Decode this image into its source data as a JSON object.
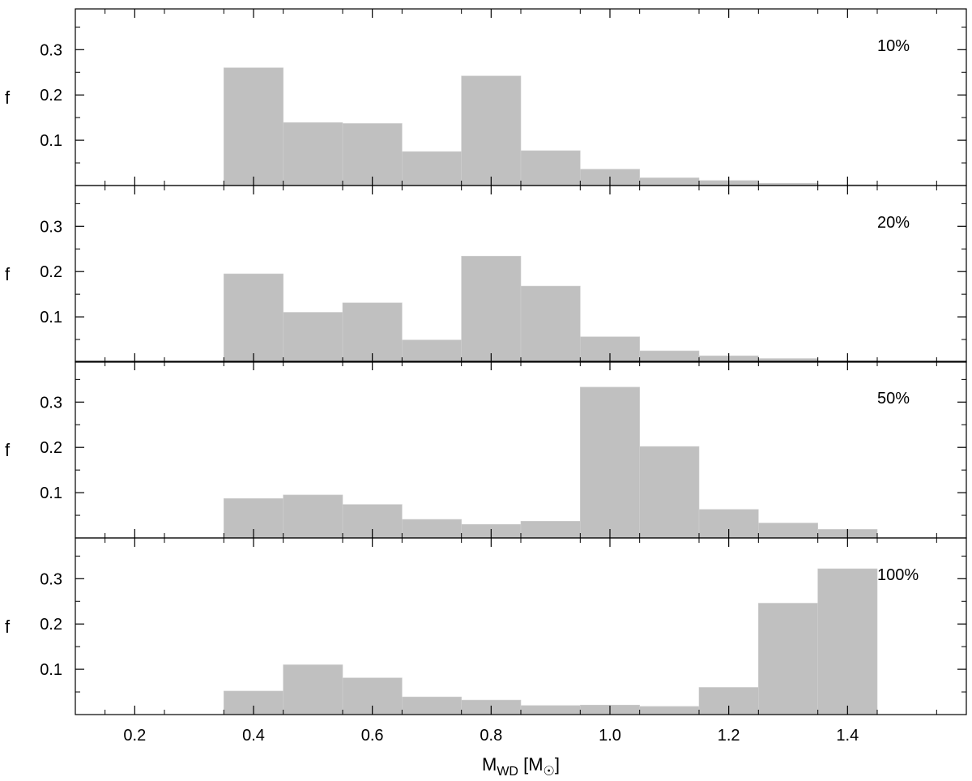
{
  "chart_data": {
    "type": "bar",
    "subtype": "histogram-stacked-panels",
    "bin_edges": [
      0.35,
      0.45,
      0.55,
      0.65,
      0.75,
      0.85,
      0.95,
      1.05,
      1.15,
      1.25,
      1.35,
      1.45
    ],
    "xlim": [
      0.1,
      1.6
    ],
    "ylim": [
      0,
      0.39
    ],
    "x_ticks": [
      0.2,
      0.4,
      0.6,
      0.8,
      1.0,
      1.2,
      1.4
    ],
    "x_tick_labels": [
      "0.2",
      "0.4",
      "0.6",
      "0.8",
      "1.0",
      "1.2",
      "1.4"
    ],
    "y_ticks": [
      0.1,
      0.2,
      0.3
    ],
    "y_tick_labels": [
      "0.1",
      "0.2",
      "0.3"
    ],
    "ylabel": "f",
    "xlabel": {
      "main": "M",
      "sub": "WD",
      "unit_open": " [M",
      "unit_sub": "☉",
      "unit_close": "]"
    },
    "bar_color": "#c0c0c0",
    "grid": false,
    "panels": [
      {
        "label": "10%",
        "values": [
          0.26,
          0.139,
          0.137,
          0.075,
          0.242,
          0.077,
          0.036,
          0.017,
          0.011,
          0.005,
          0.002
        ]
      },
      {
        "label": "20%",
        "values": [
          0.195,
          0.11,
          0.131,
          0.049,
          0.234,
          0.168,
          0.056,
          0.025,
          0.014,
          0.008,
          0.003
        ]
      },
      {
        "label": "50%",
        "values": [
          0.087,
          0.095,
          0.074,
          0.041,
          0.03,
          0.037,
          0.333,
          0.202,
          0.063,
          0.033,
          0.019
        ]
      },
      {
        "label": "100%",
        "values": [
          0.052,
          0.11,
          0.081,
          0.039,
          0.032,
          0.02,
          0.021,
          0.018,
          0.06,
          0.246,
          0.322
        ]
      }
    ]
  }
}
